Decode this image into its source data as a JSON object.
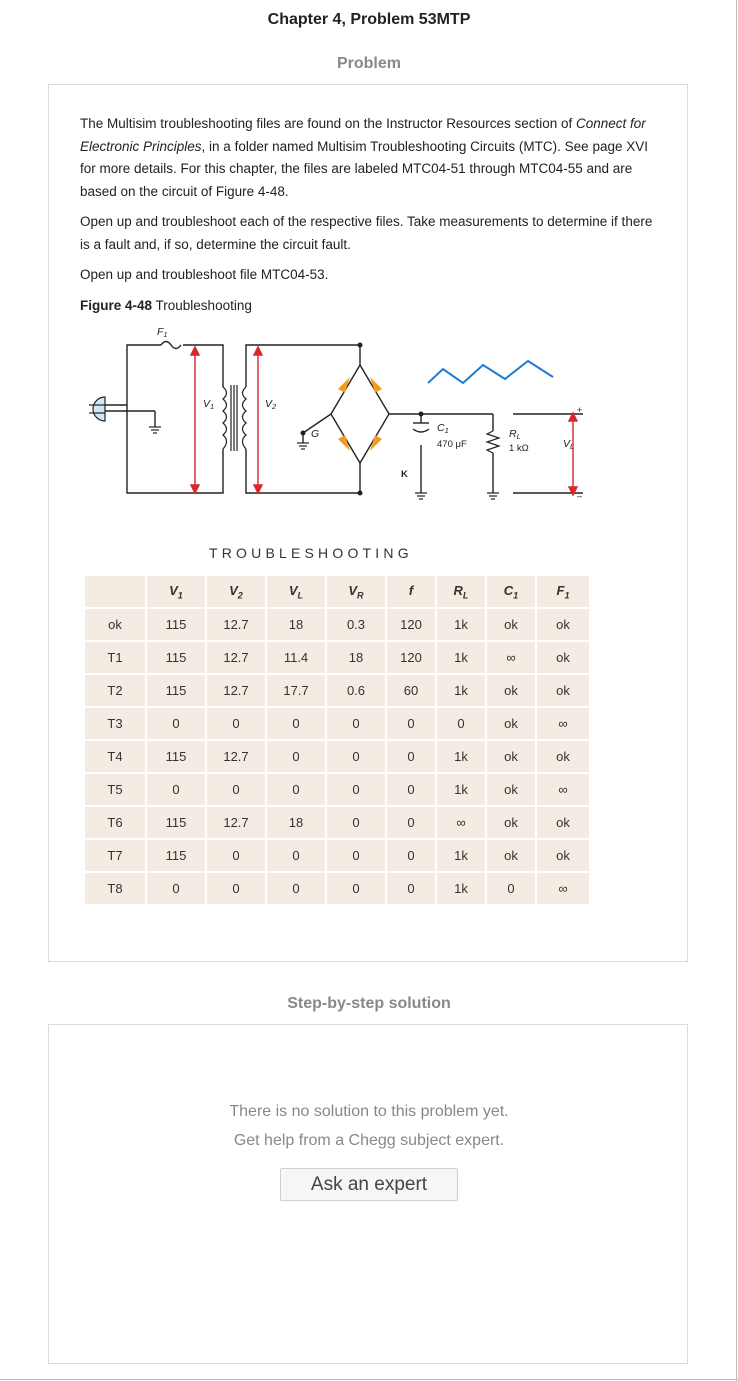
{
  "header": {
    "title": "Chapter 4, Problem 53MTP"
  },
  "problem": {
    "label": "Problem",
    "p1_a": "The Multisim troubleshooting files are found on the Instructor Resources section of ",
    "p1_italic": "Connect for Electronic Principles",
    "p1_b": ", in a folder named Multisim Troubleshooting Circuits (MTC). See page XVI for more details. For this chapter, the files are labeled MTC04-51 through MTC04-55 and are based on the circuit of Figure 4-48.",
    "p2": "Open up and troubleshoot each of the respective files. Take measurements to determine if there is a fault and, if so, determine the circuit fault.",
    "p3": "Open up and troubleshoot file MTC04-53.",
    "figure_label": "Figure 4-48",
    "figure_caption": " Troubleshooting"
  },
  "circuit": {
    "labels": {
      "f1": "F",
      "f1_sub": "1",
      "v1": "V",
      "v1_sub": "1",
      "v2": "V",
      "v2_sub": "2",
      "g": "G",
      "k": "K",
      "c1": "C",
      "c1_sub": "1",
      "c1_val": "470 μF",
      "rl": "R",
      "rl_sub": "L",
      "rl_val": "1 kΩ",
      "vl": "V",
      "vl_sub": "L",
      "plus": "+",
      "minus": "–"
    }
  },
  "troubleshooting": {
    "title": "TROUBLESHOOTING",
    "headers": [
      {
        "base": "",
        "sub": ""
      },
      {
        "base": "V",
        "sub": "1"
      },
      {
        "base": "V",
        "sub": "2"
      },
      {
        "base": "V",
        "sub": "L"
      },
      {
        "base": "V",
        "sub": "R"
      },
      {
        "base": "f",
        "sub": ""
      },
      {
        "base": "R",
        "sub": "L"
      },
      {
        "base": "C",
        "sub": "1"
      },
      {
        "base": "F",
        "sub": "1"
      }
    ],
    "rows": [
      [
        "ok",
        "115",
        "12.7",
        "18",
        "0.3",
        "120",
        "1k",
        "ok",
        "ok"
      ],
      [
        "T1",
        "115",
        "12.7",
        "11.4",
        "18",
        "120",
        "1k",
        "∞",
        "ok"
      ],
      [
        "T2",
        "115",
        "12.7",
        "17.7",
        "0.6",
        "60",
        "1k",
        "ok",
        "ok"
      ],
      [
        "T3",
        "0",
        "0",
        "0",
        "0",
        "0",
        "0",
        "ok",
        "∞"
      ],
      [
        "T4",
        "115",
        "12.7",
        "0",
        "0",
        "0",
        "1k",
        "ok",
        "ok"
      ],
      [
        "T5",
        "0",
        "0",
        "0",
        "0",
        "0",
        "1k",
        "ok",
        "∞"
      ],
      [
        "T6",
        "115",
        "12.7",
        "18",
        "0",
        "0",
        "∞",
        "ok",
        "ok"
      ],
      [
        "T7",
        "115",
        "0",
        "0",
        "0",
        "0",
        "1k",
        "ok",
        "ok"
      ],
      [
        "T8",
        "0",
        "0",
        "0",
        "0",
        "0",
        "1k",
        "0",
        "∞"
      ]
    ]
  },
  "solution": {
    "label": "Step-by-step solution",
    "line1": "There is no solution to this problem yet.",
    "line2": "Get help from a Chegg subject expert.",
    "button": "Ask an expert"
  },
  "colors": {
    "accent_orange": "#f39a21",
    "wire_red": "#d9262a",
    "sine_blue": "#1e7bd0",
    "table_bg": "#f4ebe2"
  }
}
